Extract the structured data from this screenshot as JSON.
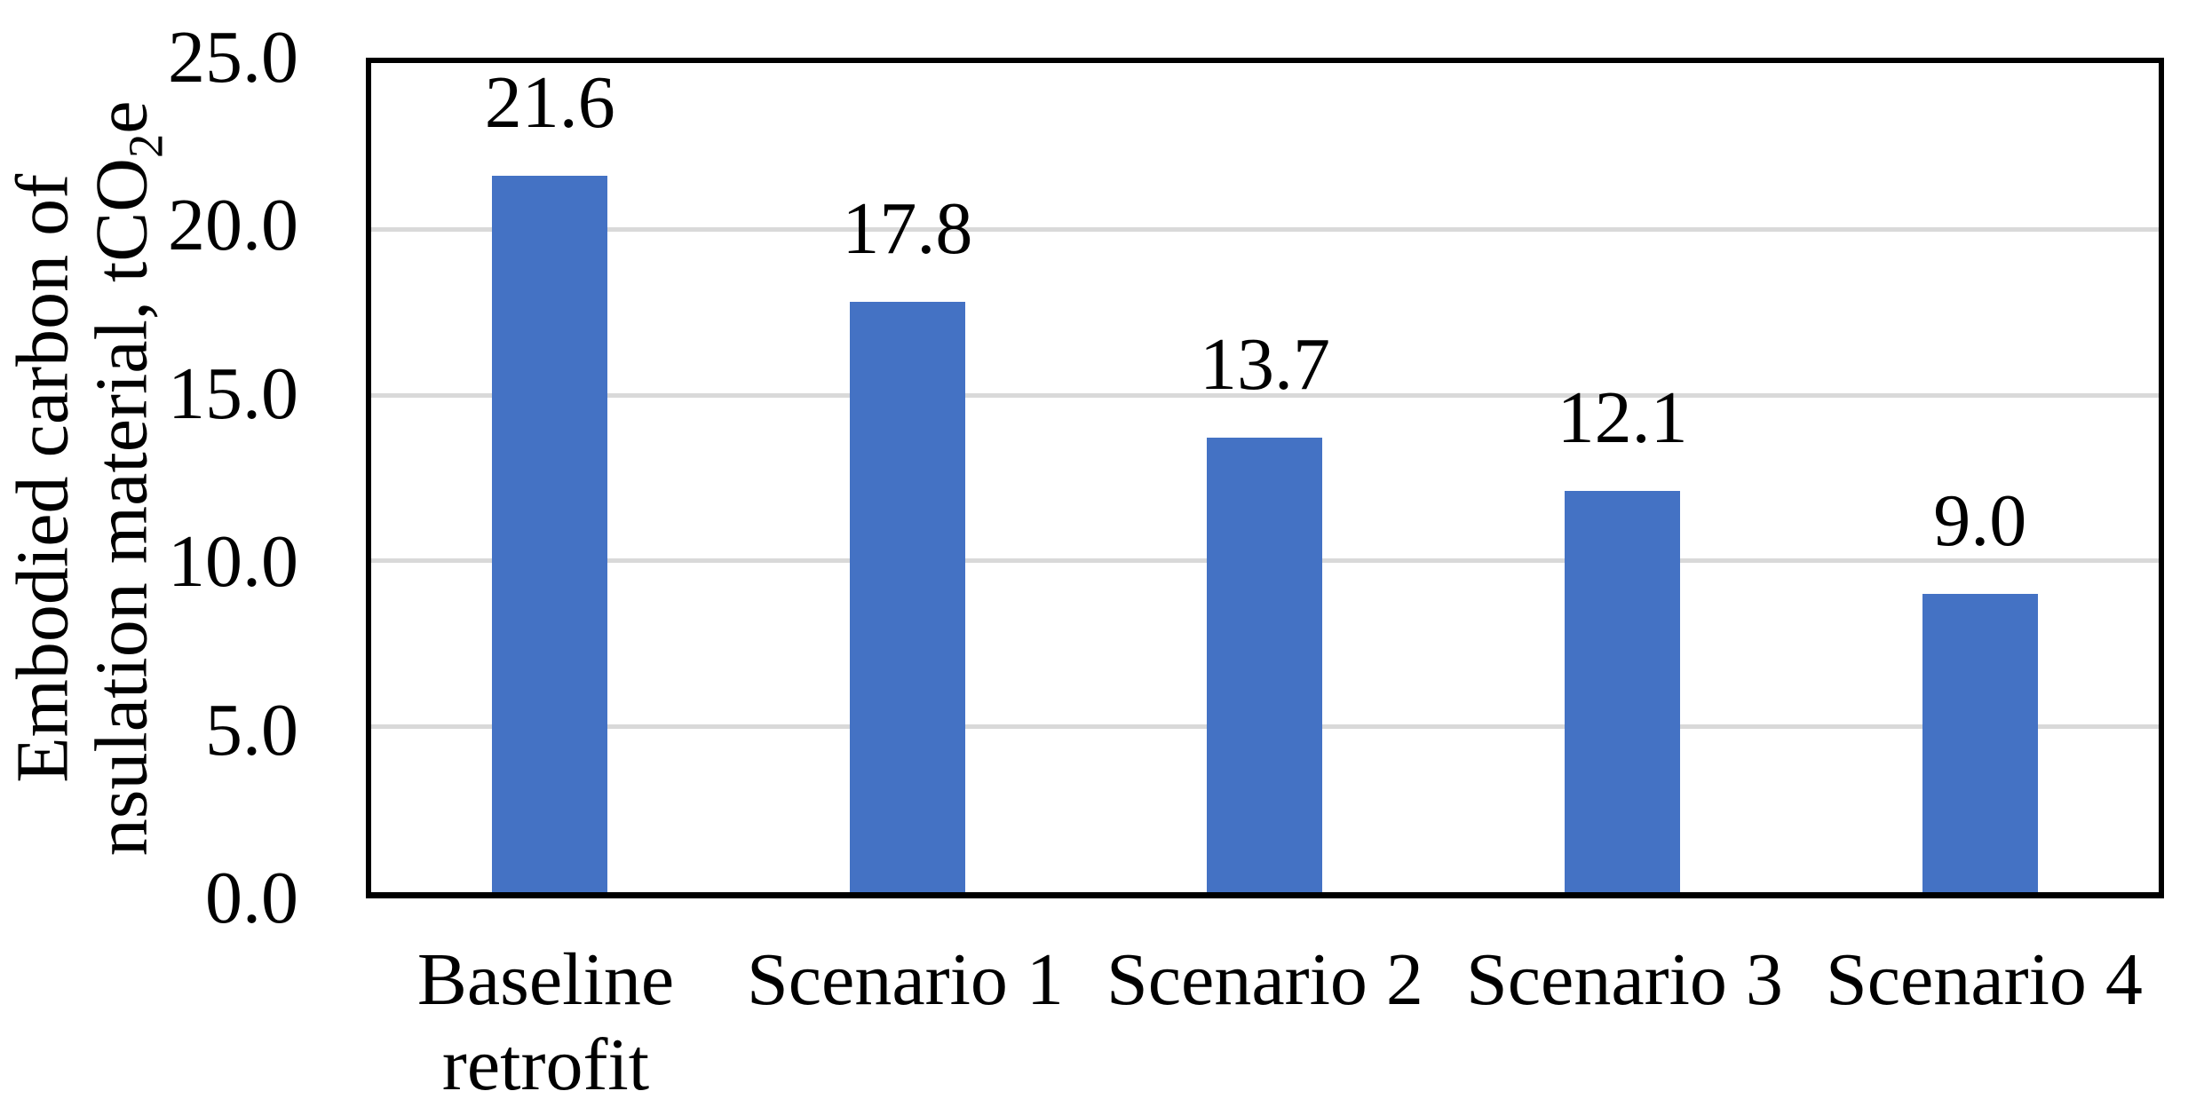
{
  "chart_data": {
    "type": "bar",
    "title": "",
    "xlabel": "",
    "ylabel": "Embodied carbon of nsulation material, tCO2e",
    "ylabel_line1": "Embodied carbon of",
    "ylabel_line2_pre": "nsulation material, tCO",
    "ylabel_line2_sub": "2",
    "ylabel_line2_post": "e",
    "categories": [
      "Baseline retrofit",
      "Scenario 1",
      "Scenario 2",
      "Scenario 3",
      "Scenario 4"
    ],
    "category_display": [
      "Baseline\nretrofit",
      "Scenario 1",
      "Scenario 2",
      "Scenario 3",
      "Scenario 4"
    ],
    "values": [
      21.6,
      17.8,
      13.7,
      12.1,
      9.0
    ],
    "data_labels": [
      "21.6",
      "17.8",
      "13.7",
      "12.1",
      "9.0"
    ],
    "ylim": [
      0,
      25
    ],
    "ytick_values": [
      25,
      20,
      15,
      10,
      5,
      0
    ],
    "yticks": [
      "25.0",
      "20.0",
      "15.0",
      "10.0",
      "5.0",
      "0.0"
    ],
    "grid": true,
    "legend_position": "none",
    "bar_color": "#4472C4",
    "gridline_color": "#D9D9D9",
    "axis_color": "#000000",
    "text_color": "#000000"
  }
}
